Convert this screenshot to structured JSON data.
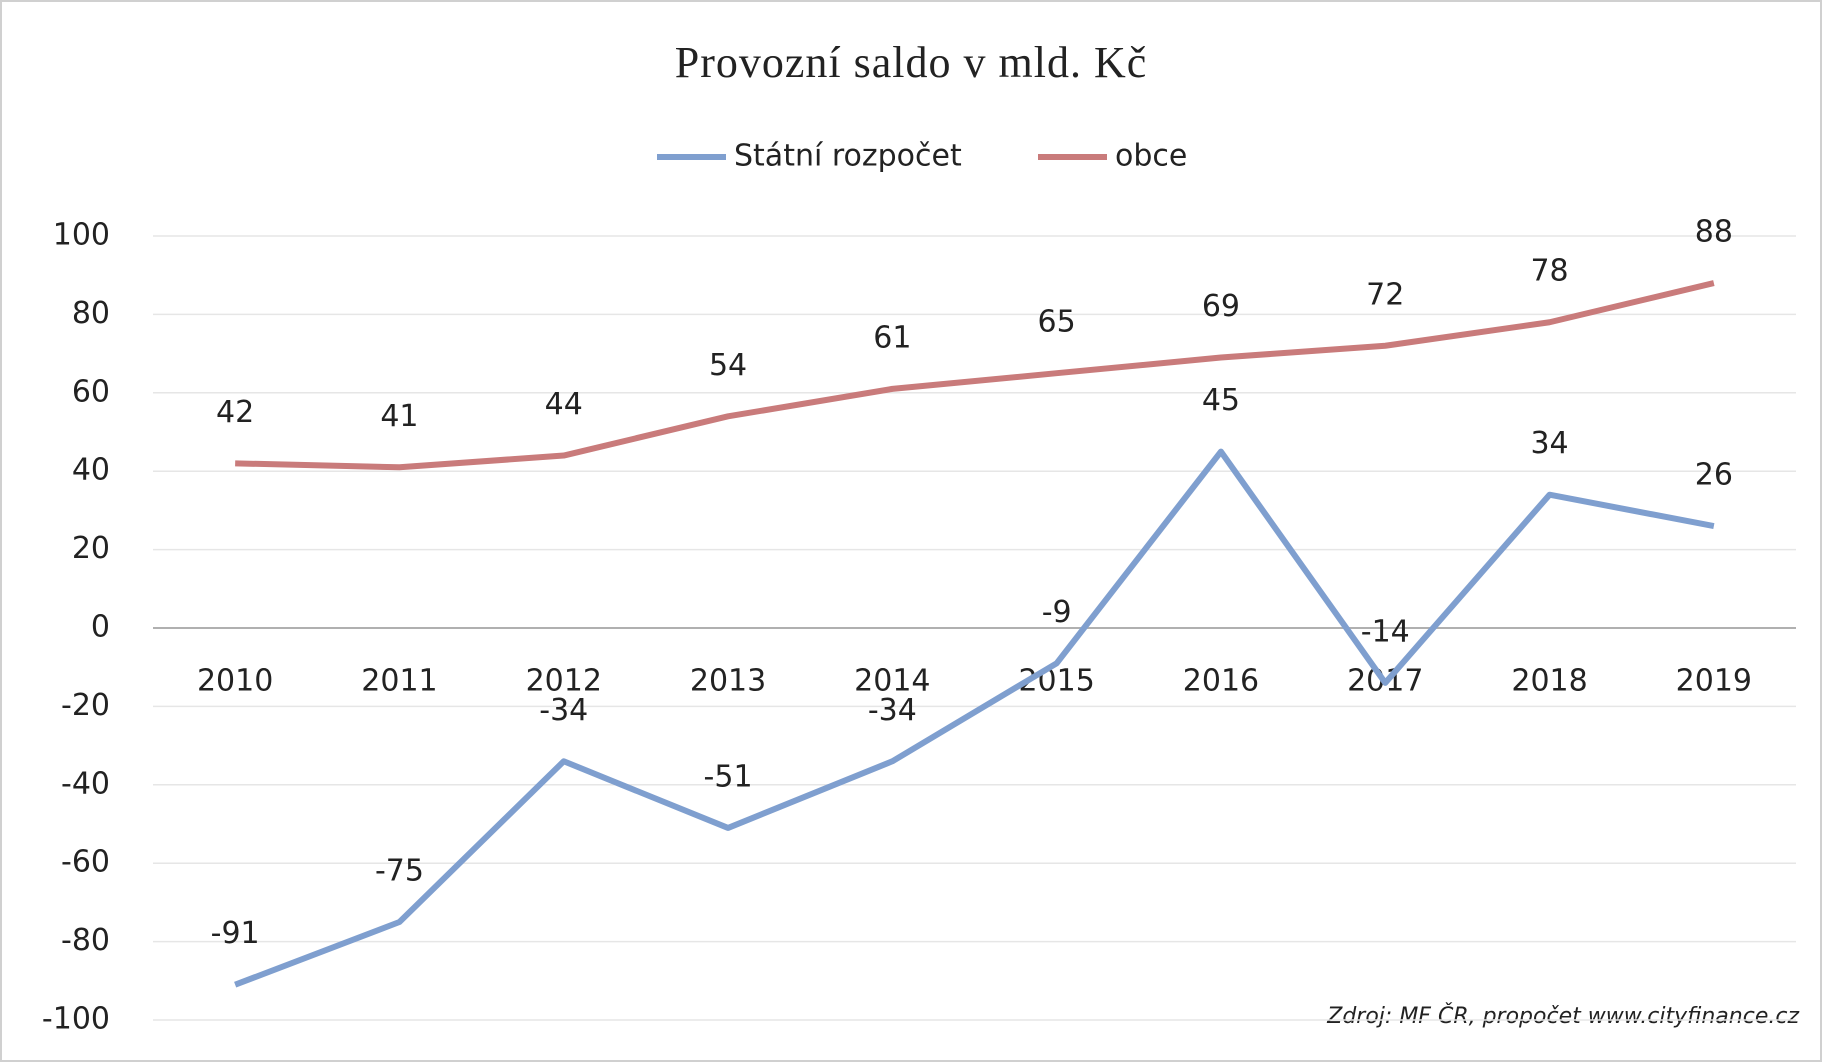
{
  "chart_data": {
    "type": "line",
    "title": "Provozní saldo v mld. Kč",
    "categories": [
      "2010",
      "2011",
      "2012",
      "2013",
      "2014",
      "2015",
      "2016",
      "2017",
      "2018",
      "2019"
    ],
    "series": [
      {
        "name": "Státní rozpočet",
        "color": "#7f9fcf",
        "values": [
          -91,
          -75,
          -34,
          -51,
          -34,
          -9,
          45,
          -14,
          34,
          26
        ]
      },
      {
        "name": "obce",
        "color": "#c97b7b",
        "values": [
          42,
          41,
          44,
          54,
          61,
          65,
          69,
          72,
          78,
          88
        ]
      }
    ],
    "ylim": [
      -100,
      100
    ],
    "yticks": [
      -100,
      -80,
      -60,
      -40,
      -20,
      0,
      20,
      40,
      60,
      80,
      100
    ],
    "grid": true,
    "legend": "top",
    "annotation": "Zdroj: MF ČR, propočet www.cityfinance.cz"
  }
}
